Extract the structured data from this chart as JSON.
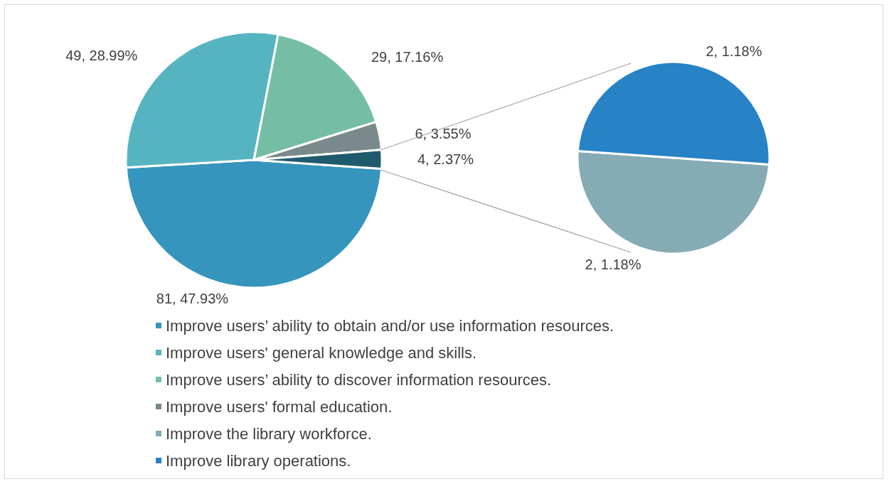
{
  "chart_data": [
    {
      "type": "pie",
      "categories": [
        "Improve users’ ability to obtain and/or use information resources.",
        "Improve users' general knowledge and skills.",
        "Improve users’ ability to discover information resources.",
        "Improve users' formal education.",
        null
      ],
      "values": [
        81,
        49,
        29,
        6,
        4
      ],
      "colors": [
        "#3595bd",
        "#56b4c0",
        "#75bea5",
        "#7a8a8c",
        "#1f5a6d"
      ],
      "value_labels": [
        "81, 47.93%",
        "49, 28.99%",
        "29, 17.16%",
        "6, 3.55%",
        "4, 2.37%"
      ],
      "legend": "bottom"
    },
    {
      "type": "pie",
      "categories": [
        "Improve the library workforce.",
        "Improve library operations."
      ],
      "values": [
        2,
        2
      ],
      "colors": [
        "#85abb5",
        "#2782c6"
      ],
      "value_labels": [
        "2, 1.18%",
        "2, 1.18%"
      ],
      "legend": "bottom"
    }
  ]
}
